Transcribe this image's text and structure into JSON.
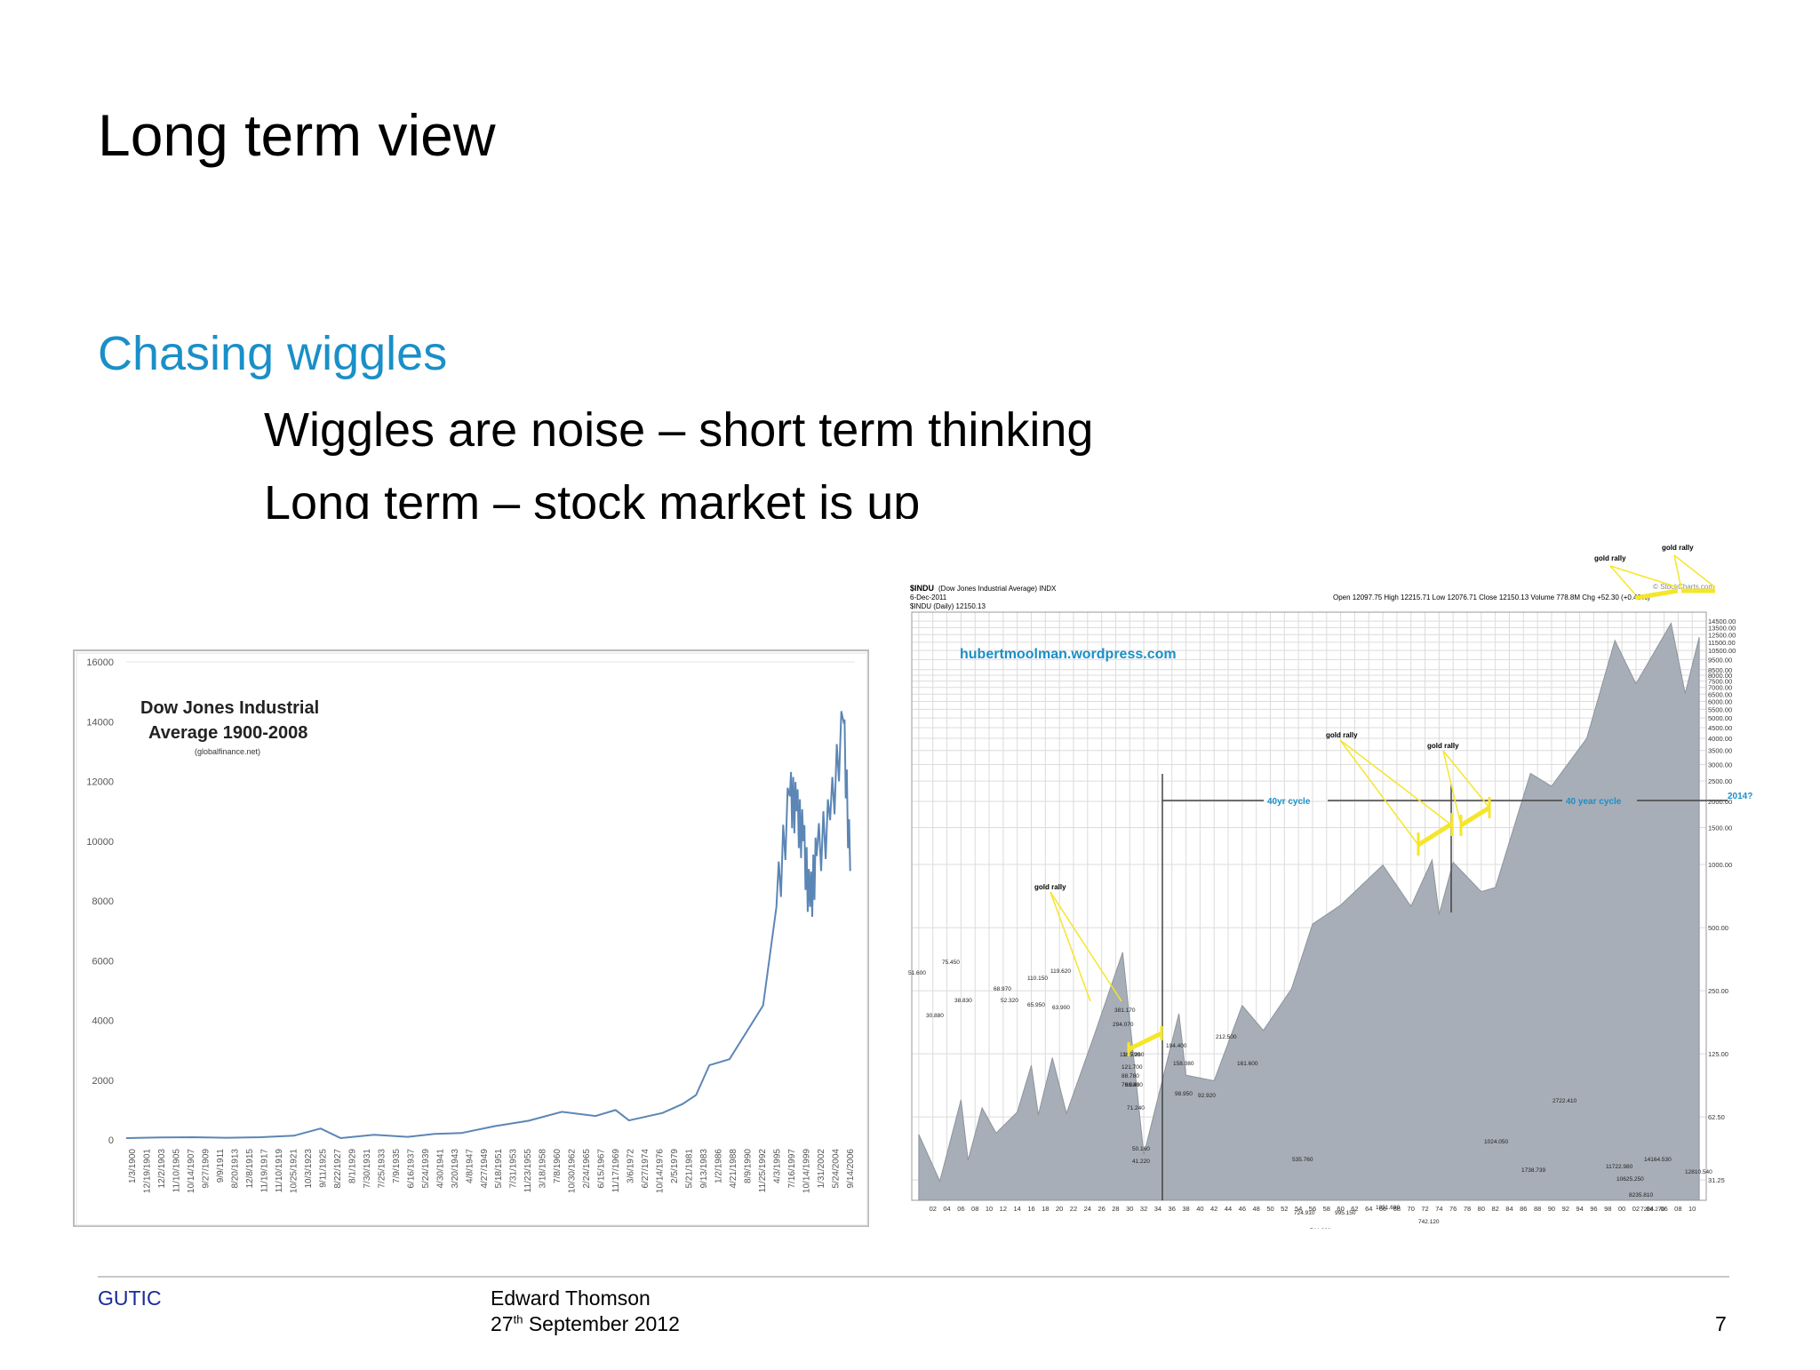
{
  "slide": {
    "title": "Long term view",
    "subheading": "Chasing wiggles",
    "bullets": [
      "Wiggles are noise – short term thinking",
      "Long term – stock market is up"
    ]
  },
  "footer": {
    "left": "GUTIC",
    "author": "Edward Thomson",
    "date_day": "27",
    "date_suffix": "th",
    "date_rest": "September 2012",
    "page": "7"
  },
  "colors": {
    "accent": "#1a8fc8",
    "footer_left": "#1a2a9a",
    "chart1_line": "#5b86b5",
    "chart2_area": "#a7aeb7",
    "highlight": "#f5e62a"
  },
  "chart_data": [
    {
      "type": "line",
      "title": "Dow Jones Industrial Average 1900-2008",
      "title_lines": [
        "Dow Jones Industrial",
        "Average 1900-2008"
      ],
      "source": "(globalfinance.net)",
      "ylim": [
        0,
        16000
      ],
      "yticks": [
        "16000",
        "14000",
        "12000",
        "10000",
        "8000",
        "6000",
        "4000",
        "2000",
        "0"
      ],
      "xticks": [
        "1/3/1900",
        "12/19/1901",
        "12/2/1903",
        "11/10/1905",
        "10/14/1907",
        "9/27/1909",
        "9/9/1911",
        "8/20/1913",
        "12/8/1915",
        "11/19/1917",
        "11/10/1919",
        "10/25/1921",
        "10/3/1923",
        "9/11/1925",
        "8/22/1927",
        "8/1/1929",
        "7/30/1931",
        "7/25/1933",
        "7/9/1935",
        "6/16/1937",
        "5/24/1939",
        "4/30/1941",
        "3/20/1943",
        "4/8/1947",
        "4/27/1949",
        "5/18/1951",
        "7/31/1953",
        "11/23/1955",
        "3/18/1958",
        "7/8/1960",
        "10/30/1962",
        "2/24/1965",
        "6/15/1967",
        "11/17/1969",
        "3/6/1972",
        "6/27/1974",
        "10/14/1976",
        "2/5/1979",
        "5/21/1981",
        "9/13/1983",
        "1/2/1986",
        "4/21/1988",
        "8/9/1990",
        "11/25/1992",
        "4/3/1995",
        "7/16/1997",
        "10/14/1999",
        "1/31/2002",
        "5/24/2004",
        "9/14/2006"
      ],
      "x": [
        1900,
        1905,
        1910,
        1915,
        1920,
        1925,
        1929,
        1932,
        1937,
        1942,
        1946,
        1950,
        1955,
        1960,
        1965,
        1970,
        1973,
        1975,
        1980,
        1983,
        1985,
        1987,
        1990,
        1995,
        1997,
        1999,
        2000,
        2001,
        2002,
        2003,
        2005,
        2007,
        2008
      ],
      "y": [
        60,
        80,
        90,
        70,
        90,
        140,
        380,
        60,
        170,
        100,
        200,
        230,
        460,
        640,
        940,
        800,
        1000,
        650,
        900,
        1200,
        1500,
        2500,
        2700,
        4500,
        7800,
        11500,
        11000,
        10000,
        7800,
        9500,
        10700,
        14000,
        9000
      ],
      "grid": false
    },
    {
      "type": "area",
      "header_title": "$INDU",
      "header_desc": "(Dow Jones Industrial Average) INDX",
      "header_date": "6-Dec-2011",
      "header_series": "$INDU (Daily) 12150.13",
      "quote": "Open 12097.75 High 12215.71 Low 12076.71 Close 12150.13 Volume 778.8M Chg +52.30 (+0.43%)",
      "watermark": "hubertmoolman.wordpress.com",
      "brand": "© StockCharts.com",
      "scale": "log",
      "ylim": [
        25,
        16000
      ],
      "yticks_right": [
        "14500.00",
        "13500.00",
        "12500.00",
        "11500.00",
        "10500.00",
        "9500.00",
        "8500.00",
        "8000.00",
        "7500.00",
        "7000.00",
        "6500.00",
        "6000.00",
        "5500.00",
        "5000.00",
        "4500.00",
        "4000.00",
        "3500.00",
        "3000.00",
        "2500.00",
        "2000.00",
        "1500.00",
        "1000.00",
        "500.00",
        "250.00",
        "125.00",
        "62.50",
        "31.25"
      ],
      "yticks_right_values": [
        14500,
        13500,
        12500,
        11500,
        10500,
        9500,
        8500,
        8000,
        7500,
        7000,
        6500,
        6000,
        5500,
        5000,
        4500,
        4000,
        3500,
        3000,
        2500,
        2000,
        1500,
        1000,
        500,
        250,
        125,
        62.5,
        31.25
      ],
      "xticks": [
        "02",
        "04",
        "06",
        "08",
        "10",
        "12",
        "14",
        "16",
        "18",
        "20",
        "22",
        "24",
        "26",
        "28",
        "30",
        "32",
        "34",
        "36",
        "38",
        "40",
        "42",
        "44",
        "46",
        "48",
        "50",
        "52",
        "54",
        "56",
        "58",
        "60",
        "62",
        "64",
        "66",
        "68",
        "70",
        "72",
        "74",
        "76",
        "78",
        "80",
        "82",
        "84",
        "86",
        "88",
        "90",
        "92",
        "94",
        "96",
        "98",
        "00",
        "02",
        "04",
        "06",
        "08",
        "10"
      ],
      "x": [
        1900,
        1903,
        1906,
        1907,
        1909,
        1911,
        1914,
        1916,
        1917,
        1919,
        1921,
        1925,
        1929,
        1932,
        1937,
        1938,
        1942,
        1946,
        1949,
        1953,
        1956,
        1960,
        1966,
        1970,
        1973,
        1974,
        1976,
        1980,
        1982,
        1987,
        1990,
        1995,
        1999,
        2000,
        2002,
        2007,
        2009,
        2011
      ],
      "y": [
        51.6,
        30.88,
        75.45,
        38.83,
        68.97,
        52.32,
        65.95,
        110.15,
        63.9,
        119.62,
        65,
        155,
        381.17,
        41.22,
        194.4,
        98.95,
        92.92,
        212.5,
        161.6,
        255,
        520,
        640,
        995.15,
        631.16,
        1051.69,
        577.6,
        1024.05,
        742.12,
        776.92,
        2722.41,
        2365,
        4000,
        11722.98,
        10000,
        7286.27,
        14164.53,
        6547.05,
        12150.13
      ],
      "annotations": [
        "51.600",
        "30.880",
        "75.450",
        "38.830",
        "68.970",
        "52.320",
        "65.950",
        "110.150",
        "63.900",
        "119.620",
        "155.260",
        "381.170",
        "294.070",
        "116.790",
        "121.700",
        "88.780",
        "79.930",
        "86.480",
        "71.240",
        "50.160",
        "41.220",
        "194.400",
        "158.080",
        "98.950",
        "92.920",
        "212.500",
        "161.600",
        "535.760",
        "724.910",
        "744.320",
        "995.150",
        "631.150",
        "1051.690",
        "577.600",
        "742.120",
        "776.918",
        "1024.050",
        "1738.739",
        "2722.410",
        "11722.980",
        "10625.250",
        "8235.810",
        "7286.270",
        "6547.050",
        "14164.530",
        "12810.540"
      ],
      "labels": {
        "gold_rally": "gold rally",
        "cycle_left": "40yr cycle",
        "cycle_right": "40 year cycle",
        "year_2014": "2014?"
      },
      "grid": true
    }
  ]
}
